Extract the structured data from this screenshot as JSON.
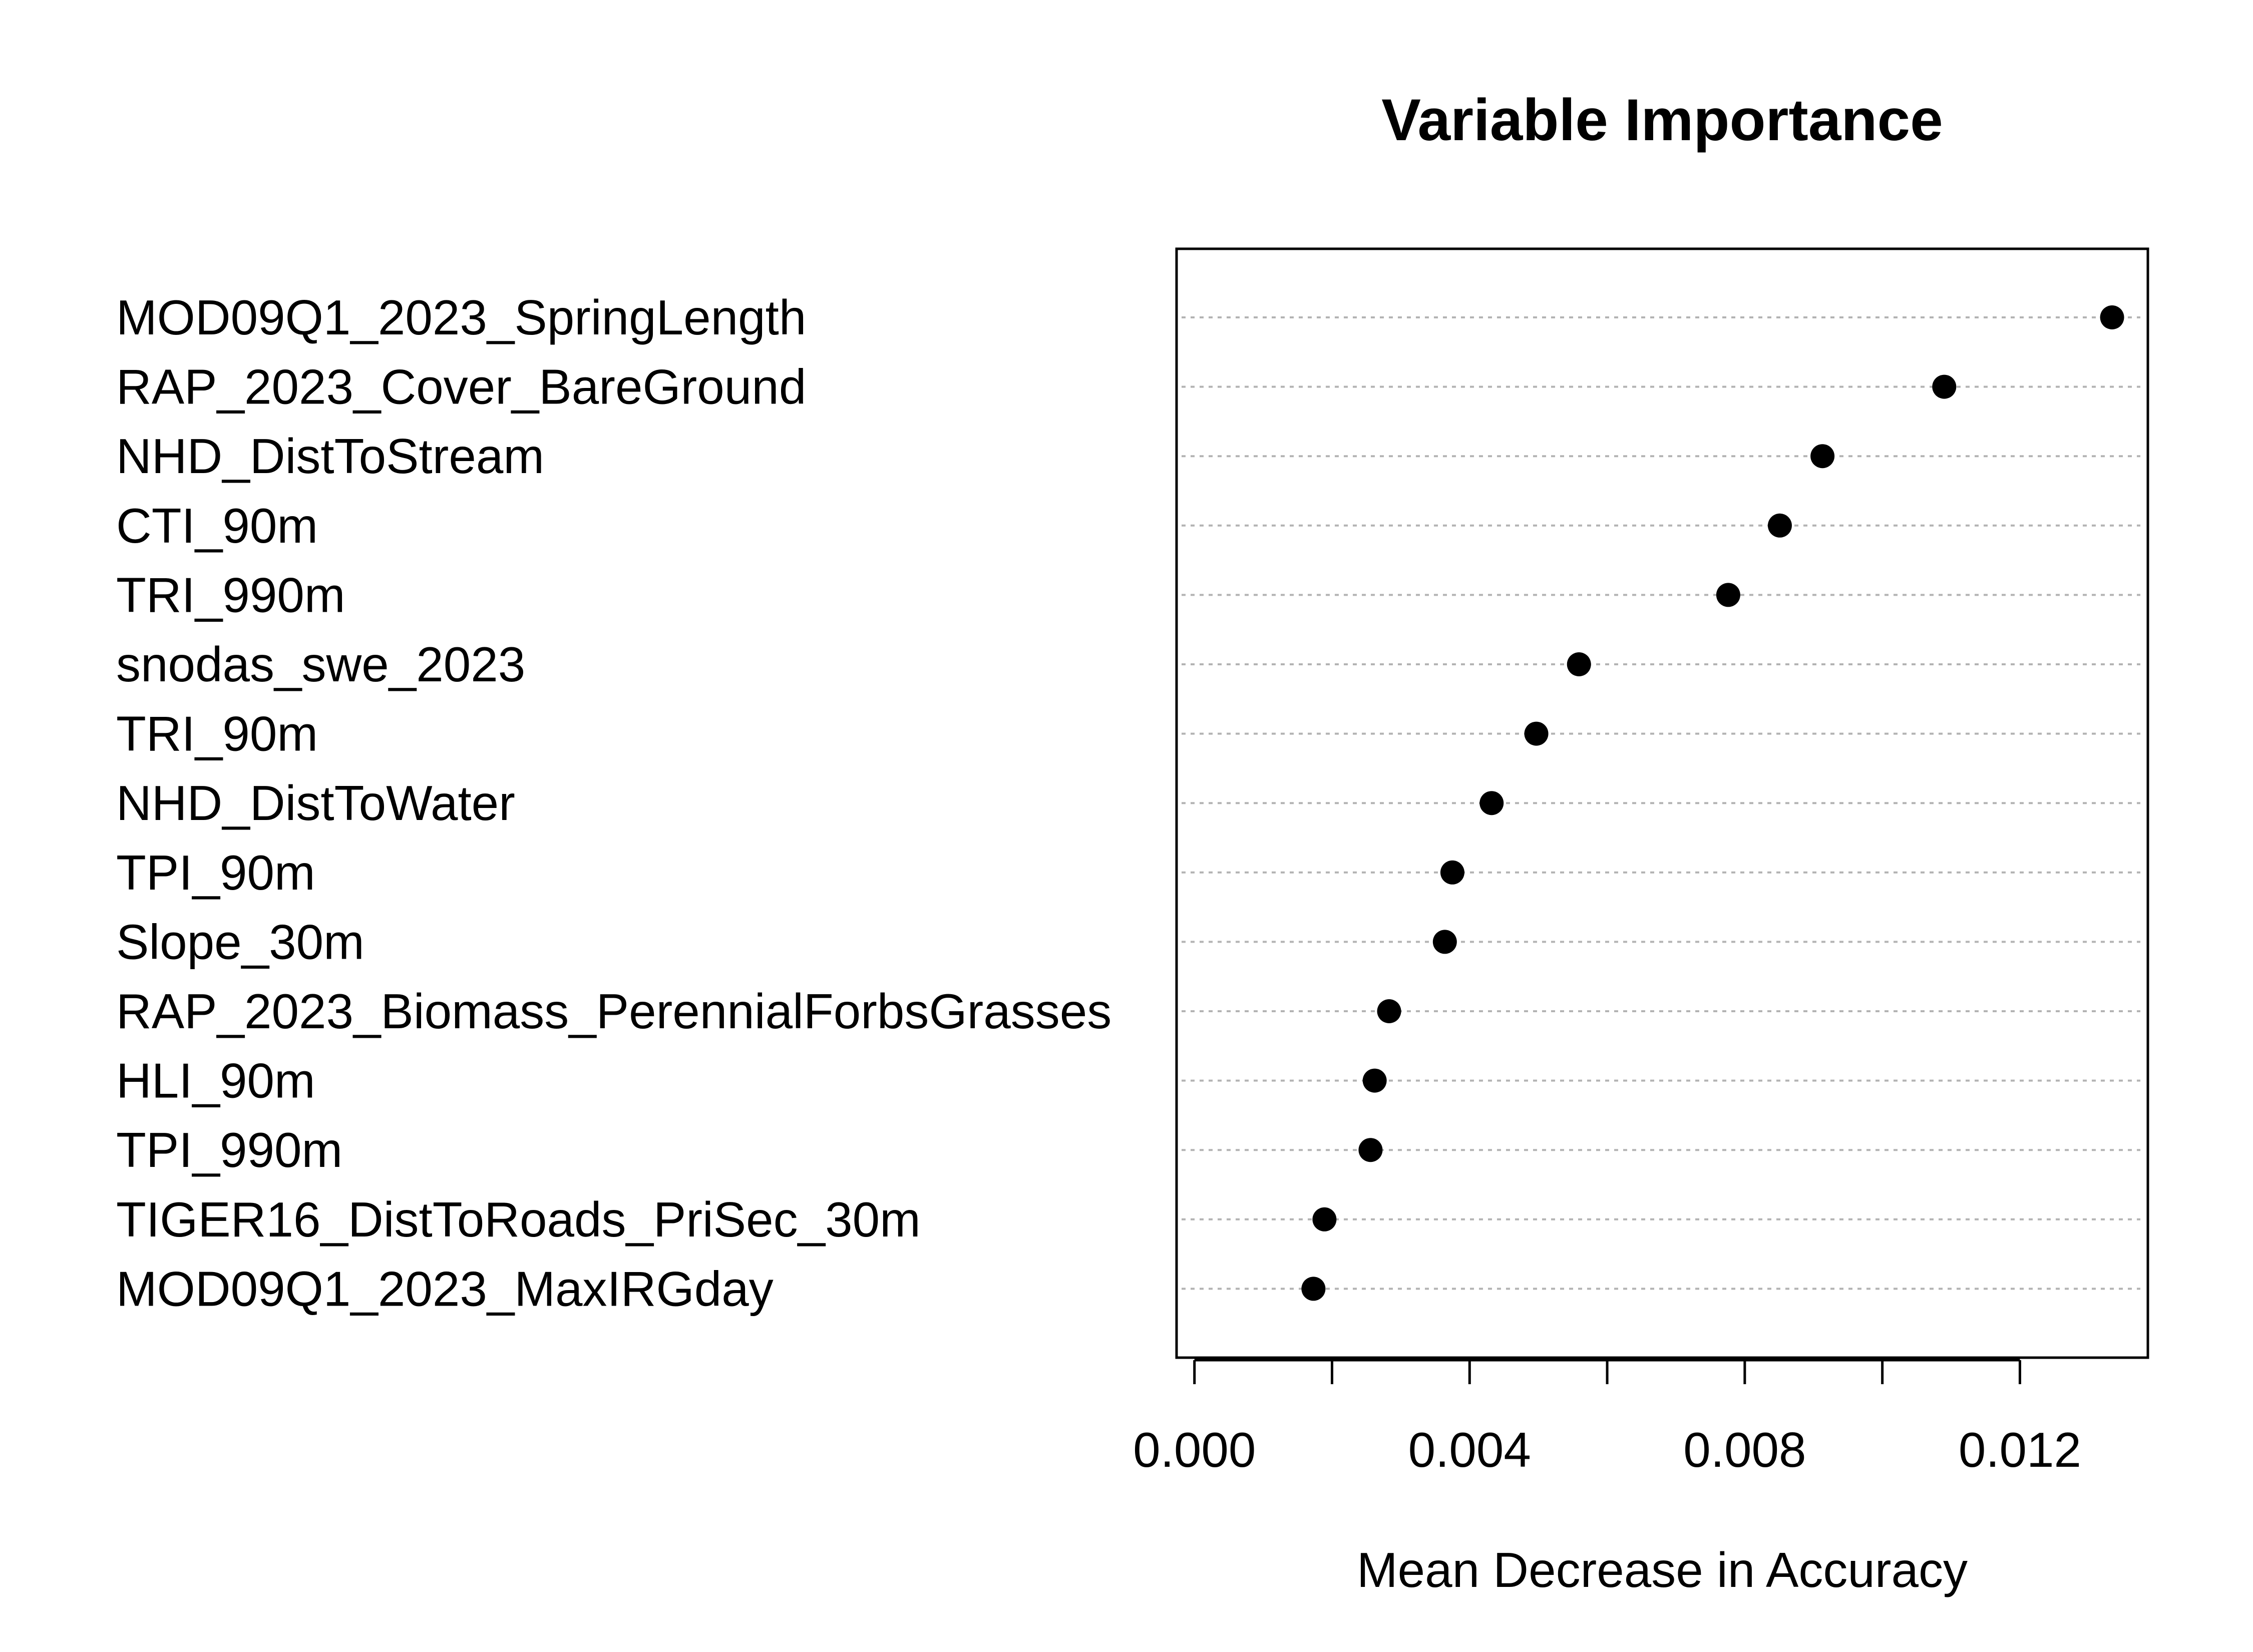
{
  "chart_data": {
    "type": "scatter",
    "title": "Variable Importance",
    "xlabel": "Mean Decrease in Accuracy",
    "ylabel": "",
    "xlim": [
      -0.00026,
      0.01386
    ],
    "xticks": [
      0.0,
      0.002,
      0.004,
      0.006,
      0.008,
      0.01,
      0.012
    ],
    "xtick_labels": [
      "0.000",
      "",
      "0.004",
      "",
      "0.008",
      "",
      "0.012"
    ],
    "grid": "horizontal dotted guide lines",
    "legend": "none",
    "marker_color": "#000000",
    "guide_color": "#b3b3b3",
    "categories": [
      "MOD09Q1_2023_SpringLength",
      "RAP_2023_Cover_BareGround",
      "NHD_DistToStream",
      "CTI_90m",
      "TRI_990m",
      "snodas_swe_2023",
      "TRI_90m",
      "NHD_DistToWater",
      "TPI_90m",
      "Slope_30m",
      "RAP_2023_Biomass_PerennialForbsGrasses",
      "HLI_90m",
      "TPI_990m",
      "TIGER16_DistToRoads_PriSec_30m",
      "MOD09Q1_2023_MaxIRGday"
    ],
    "values": [
      0.01334,
      0.0109,
      0.00913,
      0.00851,
      0.00776,
      0.00559,
      0.00497,
      0.00432,
      0.00375,
      0.00364,
      0.00283,
      0.00262,
      0.00256,
      0.00189,
      0.00173
    ]
  }
}
